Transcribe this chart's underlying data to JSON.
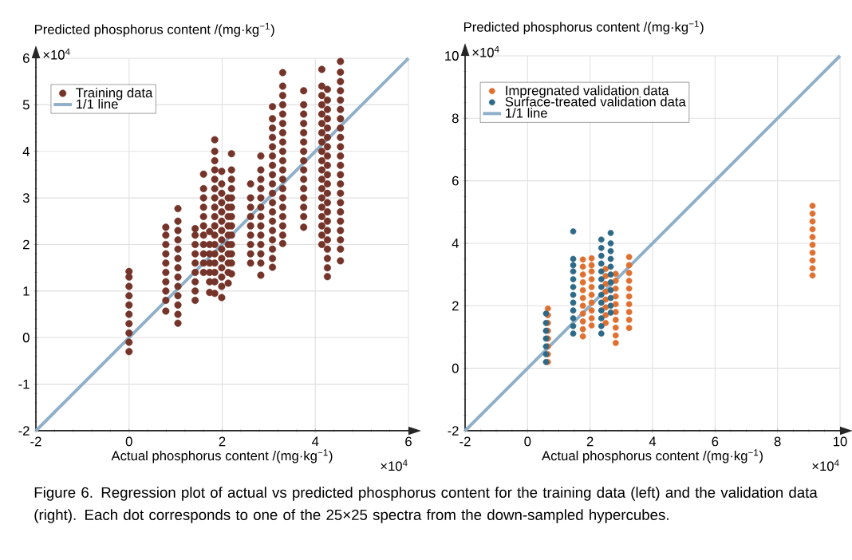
{
  "chart_data": [
    {
      "type": "scatter",
      "xlabel": "Actual phosphorus content /(mg·kg$^{−1}$)",
      "ylabel": "Predicted phosphorus content /(mg·kg$^{−1}$)",
      "xlim": [
        -2,
        6
      ],
      "ylim": [
        -2,
        6
      ],
      "xticks": [
        -2,
        0,
        2,
        4,
        6
      ],
      "yticks": [
        -2,
        -1,
        0,
        1,
        2,
        3,
        4,
        5,
        6
      ],
      "grid": true,
      "legend": "top left",
      "annotations": [
        "×10$^{4}$",
        "×10$^{4}$",
        "Figure 6. Regression plot of actual vs predicted phosphorus content for the training data (left) and the validation data (right). Each dot corresponds to one of the 25×25 spectra from the down-sampled hypercubes."
      ],
      "series": [
        {
          "name": "Training data",
          "marker": "circle",
          "color": "#75342a",
          "x": [
            0,
            0,
            0,
            0,
            0,
            0,
            0,
            0,
            0,
            0,
            0.79,
            0.79,
            0.79,
            0.79,
            0.79,
            0.79,
            0.79,
            0.79,
            0.79,
            0.79,
            1.05,
            1.05,
            1.05,
            1.05,
            1.05,
            1.05,
            1.05,
            1.05,
            1.05,
            1.05,
            1.05,
            1.05,
            1.05,
            1.42,
            1.42,
            1.42,
            1.42,
            1.42,
            1.42,
            1.42,
            1.42,
            1.42,
            1.6,
            1.6,
            1.6,
            1.6,
            1.6,
            1.6,
            1.6,
            1.6,
            1.6,
            1.6,
            1.6,
            1.73,
            1.73,
            1.73,
            1.73,
            1.73,
            1.73,
            1.73,
            1.84,
            1.84,
            1.84,
            1.84,
            1.84,
            1.84,
            1.84,
            1.84,
            1.84,
            1.84,
            1.84,
            1.84,
            1.84,
            1.84,
            1.84,
            1.84,
            1.84,
            1.99,
            1.99,
            1.99,
            1.99,
            1.99,
            1.99,
            1.99,
            1.99,
            1.99,
            1.99,
            1.99,
            1.99,
            1.99,
            1.99,
            2.13,
            2.13,
            2.13,
            2.13,
            2.13,
            2.13,
            2.13,
            2.13,
            2.13,
            2.13,
            2.2,
            2.2,
            2.2,
            2.2,
            2.2,
            2.2,
            2.2,
            2.2,
            2.2,
            2.2,
            2.2,
            2.2,
            2.2,
            2.61,
            2.61,
            2.61,
            2.61,
            2.61,
            2.61,
            2.61,
            2.61,
            2.61,
            2.83,
            2.83,
            2.83,
            2.83,
            2.83,
            2.83,
            2.83,
            2.83,
            2.83,
            2.83,
            2.83,
            2.83,
            2.83,
            3.08,
            3.08,
            3.08,
            3.08,
            3.08,
            3.08,
            3.08,
            3.08,
            3.08,
            3.08,
            3.08,
            3.08,
            3.08,
            3.08,
            3.08,
            3.08,
            3.08,
            3.08,
            3.3,
            3.3,
            3.3,
            3.3,
            3.3,
            3.3,
            3.3,
            3.3,
            3.3,
            3.3,
            3.3,
            3.3,
            3.3,
            3.3,
            3.3,
            3.3,
            3.3,
            3.3,
            3.3,
            3.75,
            3.75,
            3.75,
            3.75,
            3.75,
            3.75,
            3.75,
            3.75,
            3.75,
            3.75,
            3.75,
            3.75,
            3.75,
            3.75,
            3.75,
            4.14,
            4.14,
            4.14,
            4.14,
            4.14,
            4.14,
            4.14,
            4.14,
            4.14,
            4.14,
            4.14,
            4.14,
            4.14,
            4.14,
            4.14,
            4.14,
            4.14,
            4.14,
            4.14,
            4.26,
            4.26,
            4.26,
            4.26,
            4.26,
            4.26,
            4.26,
            4.26,
            4.26,
            4.26,
            4.26,
            4.26,
            4.26,
            4.26,
            4.26,
            4.26,
            4.26,
            4.26,
            4.26,
            4.26,
            4.26,
            4.54,
            4.54,
            4.54,
            4.54,
            4.54,
            4.54,
            4.54,
            4.54,
            4.54,
            4.54,
            4.54,
            4.54,
            4.54,
            4.54,
            4.54,
            4.54,
            4.54,
            4.54,
            4.54,
            4.54,
            4.54,
            4.54
          ],
          "values": [
            -0.3,
            -0.1,
            0.1,
            0.3,
            0.5,
            0.7,
            0.9,
            1.1,
            1.3,
            1.42,
            0.57,
            0.8,
            1.0,
            1.2,
            1.4,
            1.6,
            1.8,
            2.0,
            2.2,
            2.37,
            0.31,
            0.5,
            0.7,
            0.9,
            1.1,
            1.3,
            1.5,
            1.7,
            1.9,
            2.1,
            2.3,
            2.5,
            2.77,
            0.8,
            1.0,
            1.2,
            1.4,
            1.6,
            1.8,
            2.0,
            2.2,
            2.34,
            1.4,
            1.6,
            1.8,
            2.0,
            2.2,
            2.4,
            2.6,
            2.8,
            3.0,
            3.2,
            3.51,
            0.97,
            1.2,
            1.4,
            1.6,
            1.8,
            2.0,
            2.28,
            0.95,
            1.2,
            1.4,
            1.6,
            1.8,
            2.0,
            2.2,
            2.4,
            2.6,
            2.8,
            3.0,
            3.2,
            3.4,
            3.6,
            3.8,
            4.0,
            4.25,
            0.86,
            1.1,
            1.3,
            1.5,
            1.7,
            1.9,
            2.1,
            2.3,
            2.5,
            2.7,
            2.9,
            3.1,
            3.3,
            3.57,
            1.17,
            1.4,
            1.6,
            1.8,
            2.0,
            2.2,
            2.4,
            2.6,
            2.8,
            3.0,
            1.37,
            1.6,
            1.8,
            2.0,
            2.2,
            2.4,
            2.6,
            2.8,
            3.0,
            3.2,
            3.4,
            3.6,
            3.95,
            1.6,
            1.8,
            2.0,
            2.2,
            2.4,
            2.6,
            2.8,
            3.0,
            3.3,
            1.34,
            1.6,
            1.8,
            2.0,
            2.2,
            2.4,
            2.6,
            2.8,
            3.0,
            3.2,
            3.4,
            3.6,
            3.9,
            1.51,
            1.7,
            1.9,
            2.1,
            2.3,
            2.5,
            2.7,
            2.9,
            3.1,
            3.3,
            3.5,
            3.7,
            3.9,
            4.1,
            4.3,
            4.5,
            4.7,
            4.96,
            2.02,
            2.2,
            2.4,
            2.6,
            2.8,
            3.0,
            3.2,
            3.4,
            3.6,
            3.8,
            4.0,
            4.2,
            4.4,
            4.6,
            4.8,
            5.0,
            5.2,
            5.4,
            5.69,
            2.37,
            2.6,
            2.8,
            3.0,
            3.2,
            3.4,
            3.6,
            3.8,
            4.0,
            4.2,
            4.4,
            4.6,
            4.8,
            5.0,
            5.3,
            2.0,
            2.2,
            2.4,
            2.6,
            2.8,
            3.0,
            3.2,
            3.4,
            3.6,
            3.8,
            4.0,
            4.2,
            4.4,
            4.6,
            4.8,
            5.0,
            5.2,
            5.4,
            5.76,
            1.31,
            1.5,
            1.7,
            1.9,
            2.1,
            2.3,
            2.5,
            2.7,
            2.9,
            3.1,
            3.3,
            3.5,
            3.7,
            3.9,
            4.1,
            4.3,
            4.5,
            4.7,
            4.9,
            5.1,
            5.33,
            1.65,
            1.9,
            2.1,
            2.3,
            2.5,
            2.7,
            2.9,
            3.1,
            3.3,
            3.5,
            3.7,
            3.9,
            4.1,
            4.3,
            4.5,
            4.7,
            4.9,
            5.1,
            5.3,
            5.5,
            5.7,
            5.93
          ]
        },
        {
          "name": "1/1 line",
          "type": "line",
          "marker": "none",
          "color": "#8fb0c8",
          "x": [
            -2,
            6
          ],
          "values": [
            -2,
            6
          ]
        }
      ]
    },
    {
      "type": "scatter",
      "xlabel": "Actual phosphorus content /(mg·kg$^{−1}$)",
      "ylabel": "Predicted phosphorus content /(mg·kg$^{−1}$)",
      "xlim": [
        -2,
        10
      ],
      "ylim": [
        -2,
        10
      ],
      "xticks": [
        -2,
        0,
        2,
        4,
        6,
        8,
        10
      ],
      "yticks": [
        -2,
        0,
        2,
        4,
        6,
        8,
        10
      ],
      "grid": true,
      "legend": "top left",
      "annotations": [
        "×10$^{4}$",
        "×10$^{4}$"
      ],
      "series": [
        {
          "name": "Impregnated validation data",
          "marker": "circle",
          "color": "#e07030",
          "x": [
            0.65,
            0.65,
            0.65,
            0.65,
            0.65,
            0.65,
            0.65,
            0.65,
            1.77,
            1.77,
            1.77,
            1.77,
            1.77,
            1.77,
            1.77,
            1.77,
            1.77,
            1.77,
            1.77,
            2.05,
            2.05,
            2.05,
            2.05,
            2.05,
            2.05,
            2.05,
            2.05,
            2.05,
            2.05,
            2.5,
            2.5,
            2.5,
            2.5,
            2.5,
            2.5,
            2.5,
            2.5,
            2.82,
            2.82,
            2.82,
            2.82,
            2.82,
            2.82,
            2.82,
            2.82,
            2.82,
            2.82,
            3.25,
            3.25,
            3.25,
            3.25,
            3.25,
            3.25,
            3.25,
            3.25,
            3.25,
            3.25,
            9.12,
            9.12,
            9.12,
            9.12,
            9.12,
            9.12,
            9.12,
            9.12,
            9.12,
            9.12
          ],
          "values": [
            0.2,
            0.45,
            0.7,
            0.95,
            1.2,
            1.45,
            1.7,
            1.91,
            1.02,
            1.25,
            1.5,
            1.75,
            2.0,
            2.25,
            2.5,
            2.75,
            3.0,
            3.25,
            3.48,
            1.37,
            1.6,
            1.85,
            2.1,
            2.35,
            2.6,
            2.85,
            3.1,
            3.3,
            3.52,
            1.45,
            1.7,
            1.95,
            2.2,
            2.45,
            2.7,
            2.95,
            3.18,
            0.81,
            1.05,
            1.3,
            1.55,
            1.8,
            2.05,
            2.3,
            2.55,
            2.8,
            3.02,
            1.29,
            1.55,
            1.8,
            2.05,
            2.3,
            2.55,
            2.8,
            3.05,
            3.3,
            3.56,
            2.97,
            3.2,
            3.45,
            3.7,
            3.95,
            4.2,
            4.45,
            4.7,
            4.95,
            5.2
          ]
        },
        {
          "name": "Surface-treated validation data",
          "marker": "circle",
          "color": "#2e6a87",
          "x": [
            0.59,
            0.59,
            0.59,
            0.59,
            0.59,
            0.59,
            0.59,
            1.46,
            1.46,
            1.46,
            1.46,
            1.46,
            1.46,
            1.46,
            1.46,
            1.46,
            1.46,
            1.46,
            1.46,
            2.36,
            2.36,
            2.36,
            2.36,
            2.36,
            2.36,
            2.36,
            2.36,
            2.36,
            2.36,
            2.36,
            2.36,
            2.36,
            2.66,
            2.66,
            2.66,
            2.66,
            2.66,
            2.66,
            2.66,
            2.66,
            2.66,
            2.66,
            2.66
          ],
          "values": [
            0.2,
            0.45,
            0.7,
            0.95,
            1.2,
            1.45,
            1.75,
            1.11,
            1.35,
            1.6,
            1.85,
            2.1,
            2.35,
            2.6,
            2.85,
            3.1,
            3.3,
            3.5,
            4.38,
            1.11,
            1.35,
            1.6,
            1.85,
            2.1,
            2.35,
            2.6,
            2.85,
            3.1,
            3.35,
            3.6,
            3.85,
            4.12,
            1.78,
            2.0,
            2.25,
            2.5,
            2.75,
            3.0,
            3.25,
            3.5,
            3.75,
            4.0,
            4.33
          ]
        },
        {
          "name": "1/1 line",
          "type": "line",
          "marker": "none",
          "color": "#8fb0c8",
          "x": [
            -2,
            10
          ],
          "values": [
            -2,
            10
          ]
        }
      ]
    }
  ]
}
